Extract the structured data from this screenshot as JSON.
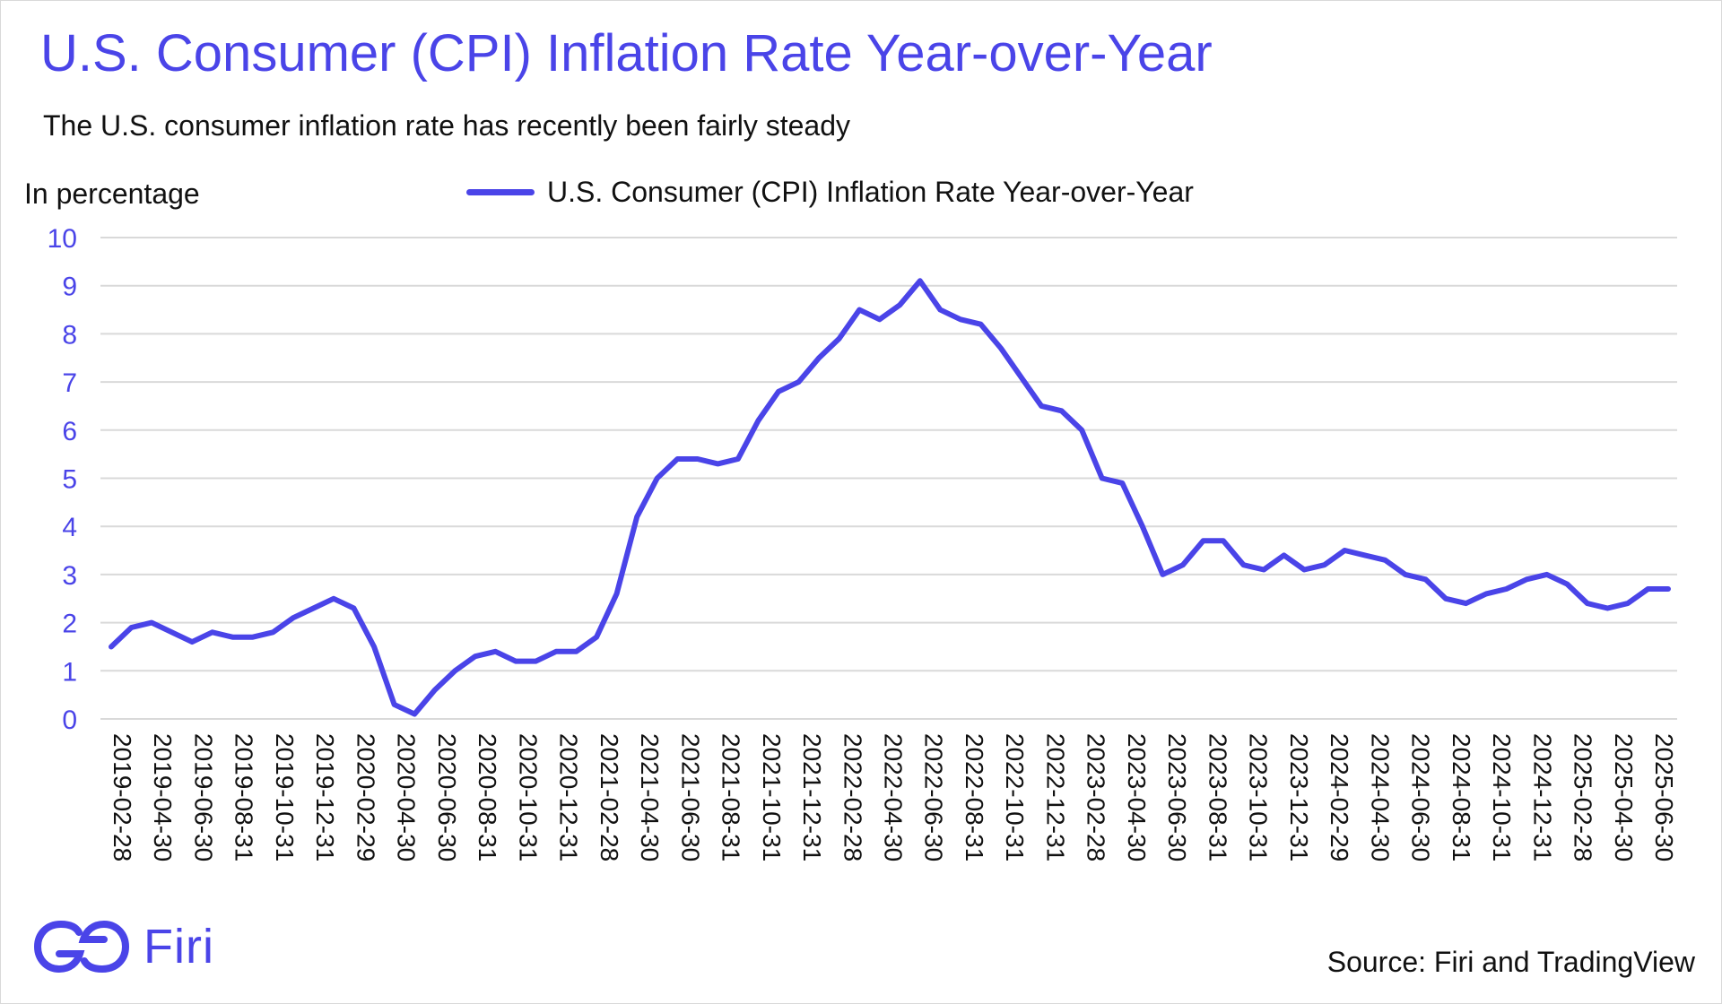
{
  "header": {
    "title": "U.S. Consumer (CPI) Inflation Rate Year-over-Year",
    "subtitle": "The U.S. consumer inflation rate has recently been fairly steady"
  },
  "footer": {
    "brand": "Firi",
    "source": "Source: Firi and TradingView"
  },
  "colors": {
    "accent": "#4a44e8",
    "grid": "#d9d9d9",
    "text": "#111111"
  },
  "chart_data": {
    "type": "line",
    "title": "U.S. Consumer (CPI) Inflation Rate Year-over-Year",
    "xlabel": "",
    "ylabel": "In percentage",
    "ylim": [
      0,
      10
    ],
    "yticks": [
      0,
      1,
      2,
      3,
      4,
      5,
      6,
      7,
      8,
      9,
      10
    ],
    "legend": "top-center",
    "grid": true,
    "x_tick_labels": [
      "2019-02-28",
      "2019-04-30",
      "2019-06-30",
      "2019-08-31",
      "2019-10-31",
      "2019-12-31",
      "2020-02-29",
      "2020-04-30",
      "2020-06-30",
      "2020-08-31",
      "2020-10-31",
      "2020-12-31",
      "2021-02-28",
      "2021-04-30",
      "2021-06-30",
      "2021-08-31",
      "2021-10-31",
      "2021-12-31",
      "2022-02-28",
      "2022-04-30",
      "2022-06-30",
      "2022-08-31",
      "2022-10-31",
      "2022-12-31",
      "2023-02-28",
      "2023-04-30",
      "2023-06-30",
      "2023-08-31",
      "2023-10-31",
      "2023-12-31",
      "2024-02-29",
      "2024-04-30",
      "2024-06-30",
      "2024-08-31",
      "2024-10-31",
      "2024-12-31",
      "2025-02-28",
      "2025-04-30",
      "2025-06-30"
    ],
    "series": [
      {
        "name": "U.S. Consumer (CPI) Inflation Rate Year-over-Year",
        "values": [
          1.5,
          1.9,
          2.0,
          1.8,
          1.6,
          1.8,
          1.7,
          1.7,
          1.8,
          2.1,
          2.3,
          2.5,
          2.3,
          1.5,
          0.3,
          0.1,
          0.6,
          1.0,
          1.3,
          1.4,
          1.2,
          1.2,
          1.4,
          1.4,
          1.7,
          2.6,
          4.2,
          5.0,
          5.4,
          5.4,
          5.3,
          5.4,
          6.2,
          6.8,
          7.0,
          7.5,
          7.9,
          8.5,
          8.3,
          8.6,
          9.1,
          8.5,
          8.3,
          8.2,
          7.7,
          7.1,
          6.5,
          6.4,
          6.0,
          5.0,
          4.9,
          4.0,
          3.0,
          3.2,
          3.7,
          3.7,
          3.2,
          3.1,
          3.4,
          3.1,
          3.2,
          3.5,
          3.4,
          3.3,
          3.0,
          2.9,
          2.5,
          2.4,
          2.6,
          2.7,
          2.9,
          3.0,
          2.8,
          2.4,
          2.3,
          2.4,
          2.7,
          2.7
        ]
      }
    ]
  }
}
